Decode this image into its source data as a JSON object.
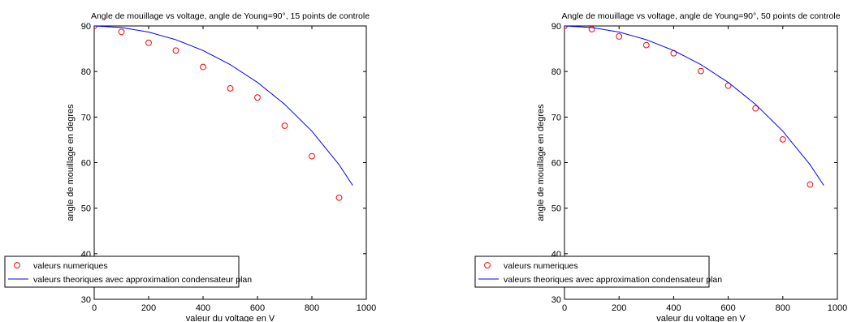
{
  "chart_data": [
    {
      "type": "scatter+line",
      "title": "Angle de mouillage vs voltage, angle de Young=90°, 15 points de controle",
      "xlabel": "valeur du voltage en V",
      "ylabel": "angle de mouillage en degres",
      "xlim": [
        0,
        1000
      ],
      "ylim": [
        30,
        90
      ],
      "xticks": [
        0,
        200,
        400,
        600,
        800,
        1000
      ],
      "yticks": [
        30,
        40,
        50,
        60,
        70,
        80,
        90
      ],
      "grid": false,
      "legend_position": "bottom-left",
      "series": [
        {
          "name": "valeurs numeriques",
          "kind": "scatter",
          "marker": "circle",
          "color": "#ff0000",
          "x": [
            0,
            100,
            200,
            300,
            400,
            500,
            600,
            700,
            800,
            900
          ],
          "y": [
            90,
            88.7,
            86.3,
            84.6,
            81.0,
            76.3,
            74.3,
            68.1,
            61.4,
            52.3
          ]
        },
        {
          "name": "valeurs theoriques avec approximation condensateur plan",
          "kind": "line",
          "color": "#0000ff",
          "x": [
            0,
            100,
            200,
            300,
            400,
            500,
            600,
            700,
            800,
            900,
            950
          ],
          "y": [
            90,
            89.66,
            88.66,
            86.98,
            84.61,
            81.51,
            77.61,
            72.8,
            66.9,
            59.54,
            55.0
          ]
        }
      ]
    },
    {
      "type": "scatter+line",
      "title": "Angle de mouillage vs voltage, angle de Young=90°, 50 points de controle",
      "xlabel": "valeur du voltage en V",
      "ylabel": "angle de mouillage en degres",
      "xlim": [
        0,
        1000
      ],
      "ylim": [
        30,
        90
      ],
      "xticks": [
        0,
        200,
        400,
        600,
        800,
        1000
      ],
      "yticks": [
        30,
        40,
        50,
        60,
        70,
        80,
        90
      ],
      "grid": false,
      "legend_position": "bottom-left",
      "series": [
        {
          "name": "valeurs numeriques",
          "kind": "scatter",
          "marker": "circle",
          "color": "#ff0000",
          "x": [
            0,
            100,
            200,
            300,
            400,
            500,
            600,
            700,
            800,
            900
          ],
          "y": [
            90,
            89.3,
            87.7,
            85.8,
            84.0,
            80.1,
            76.9,
            71.9,
            65.1,
            55.2
          ]
        },
        {
          "name": "valeurs theoriques avec approximation condensateur plan",
          "kind": "line",
          "color": "#0000ff",
          "x": [
            0,
            100,
            200,
            300,
            400,
            500,
            600,
            700,
            800,
            900,
            950
          ],
          "y": [
            90,
            89.66,
            88.66,
            86.98,
            84.61,
            81.51,
            77.61,
            72.8,
            66.9,
            59.54,
            55.0
          ]
        }
      ]
    }
  ]
}
